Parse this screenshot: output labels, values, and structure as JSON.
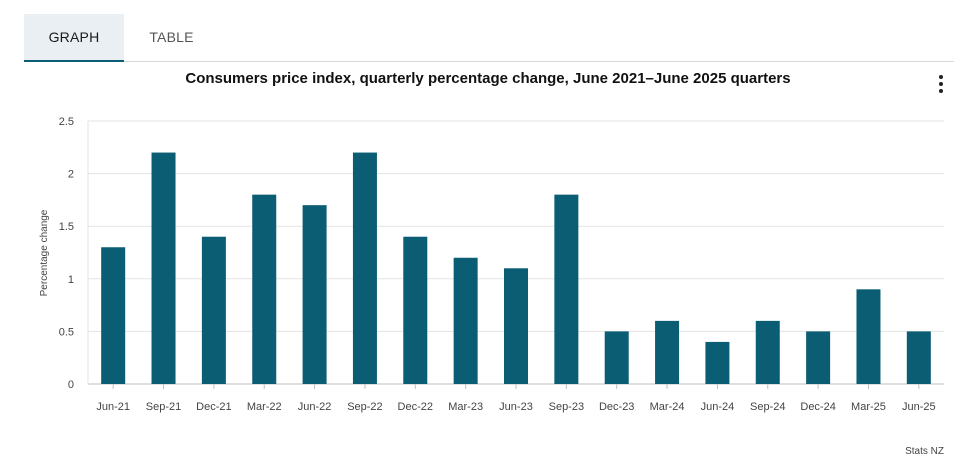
{
  "tabs": {
    "graph": "GRAPH",
    "table": "TABLE"
  },
  "menu_icon": "kebab-menu-icon",
  "credit": "Stats NZ",
  "colors": {
    "bar": "#0b5d73",
    "grid": "#e3e3e3",
    "axis_text": "#444444"
  },
  "chart_data": {
    "type": "bar",
    "title": "Consumers price index, quarterly percentage change, June 2021–June 2025 quarters",
    "xlabel": "",
    "ylabel": "Percentage change",
    "ylim": [
      0,
      2.5
    ],
    "yticks": [
      "0",
      "0.5",
      "1",
      "1.5",
      "2",
      "2.5"
    ],
    "ytick_values": [
      0,
      0.5,
      1,
      1.5,
      2,
      2.5
    ],
    "grid": true,
    "categories": [
      "Jun-21",
      "Sep-21",
      "Dec-21",
      "Mar-22",
      "Jun-22",
      "Sep-22",
      "Dec-22",
      "Mar-23",
      "Jun-23",
      "Sep-23",
      "Dec-23",
      "Mar-24",
      "Jun-24",
      "Sep-24",
      "Dec-24",
      "Mar-25",
      "Jun-25"
    ],
    "values": [
      1.3,
      2.2,
      1.4,
      1.8,
      1.7,
      2.2,
      1.4,
      1.2,
      1.1,
      1.8,
      0.5,
      0.6,
      0.4,
      0.6,
      0.5,
      0.9,
      0.5
    ]
  }
}
